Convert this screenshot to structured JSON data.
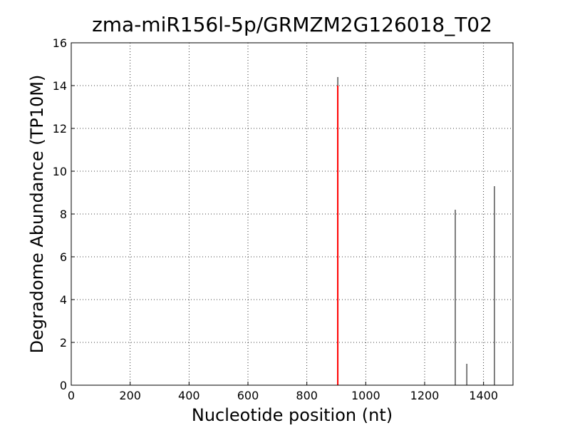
{
  "chart_data": {
    "type": "vlines",
    "title": "zma-miR156l-5p/GRMZM2G126018_T02",
    "xlabel": "Nucleotide position (nt)",
    "ylabel": "Degradome Abundance (TP10M)",
    "xlim": [
      0,
      1500
    ],
    "xticks": [
      0,
      200,
      400,
      600,
      800,
      1000,
      1200,
      1400
    ],
    "ylim": [
      0,
      16
    ],
    "yticks": [
      0,
      2,
      4,
      6,
      8,
      10,
      12,
      14,
      16
    ],
    "grid": true,
    "series": [
      {
        "color": "#000000",
        "x": [
          905,
          1304,
          1343,
          1437
        ],
        "values": [
          14.4,
          8.2,
          1.0,
          9.3
        ]
      },
      {
        "color": "#ff0000",
        "x": [
          905
        ],
        "values": [
          14
        ]
      }
    ]
  }
}
